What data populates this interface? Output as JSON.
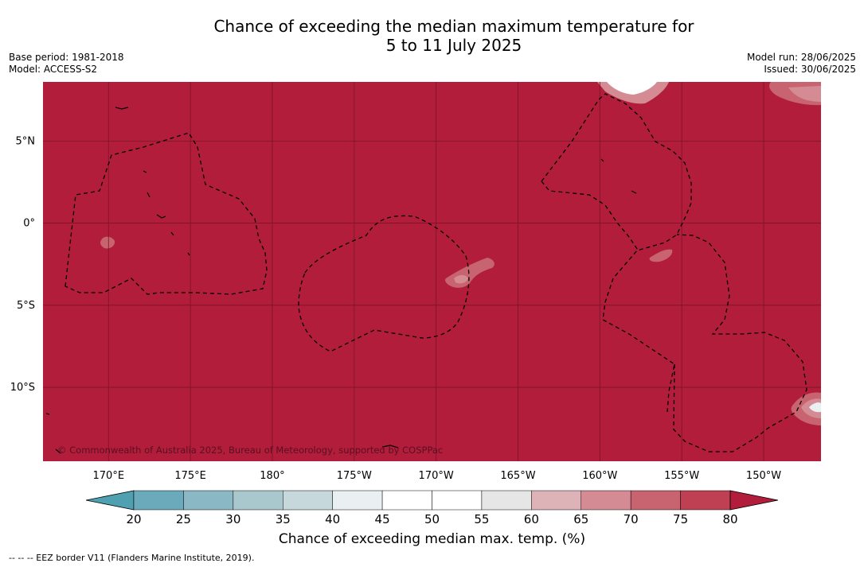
{
  "title": {
    "line1": "Chance of exceeding the median maximum temperature for",
    "line2": "5 to 11 July 2025"
  },
  "meta_left": {
    "base_period": "Base period: 1981-2018",
    "model": "Model: ACCESS-S2"
  },
  "meta_right": {
    "model_run": "Model run: 28/06/2025",
    "issued": "Issued: 30/06/2025"
  },
  "map": {
    "copyright": "© Commonwealth of Australia 2025, Bureau of Meteorology, supported by COSPPac",
    "lat_labels": [
      "5°N",
      "0°",
      "5°S",
      "10°S"
    ],
    "lat_values": [
      5,
      0,
      -5,
      -10
    ],
    "lon_labels": [
      "170°E",
      "175°E",
      "180°",
      "175°W",
      "170°W",
      "165°W",
      "160°W",
      "155°W",
      "150°W"
    ],
    "lon_values": [
      170,
      175,
      180,
      185,
      190,
      195,
      200,
      205,
      210
    ],
    "extent": {
      "lon_min": 166,
      "lon_max": 213.5,
      "lat_min": -14.5,
      "lat_max": 8.6
    },
    "background_color": "#b11d3a",
    "grid_color": "#7a1428",
    "eez_style": "dashed black"
  },
  "colorbar": {
    "ticks": [
      "20",
      "25",
      "30",
      "35",
      "40",
      "45",
      "50",
      "55",
      "60",
      "65",
      "70",
      "75",
      "80"
    ],
    "colors": [
      "#6aaabb",
      "#8ab8c4",
      "#a8c8cd",
      "#c6d8dc",
      "#eaeff1",
      "#ffffff",
      "#ffffff",
      "#e6e6e6",
      "#ddb3b8",
      "#d48b93",
      "#c8646f",
      "#bf4052"
    ],
    "under_color": "#4fa0b0",
    "over_color": "#b11d3a",
    "label": "Chance of exceeding median max. temp. (%)"
  },
  "footnote": "--  --  -- EEZ border V11 (Flanders Marine Institute, 2019)."
}
